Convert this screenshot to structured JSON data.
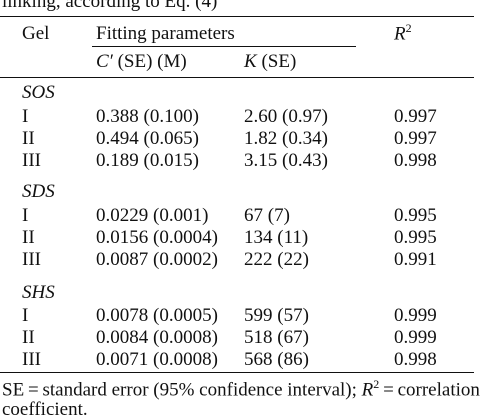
{
  "caption_top": "linking, according to Eq. (4)",
  "headers": {
    "gel": "Gel",
    "fitting_parameters": "Fitting parameters",
    "c_prime": "C′",
    "c_unit": " (SE) (M)",
    "k": "K",
    "k_unit": " (SE)",
    "r": "R",
    "r_sup": "2"
  },
  "groups": [
    {
      "name": "SOS",
      "rows": [
        {
          "gel": "I",
          "c": "0.388 (0.100)",
          "k": "2.60 (0.97)",
          "r2": "0.997"
        },
        {
          "gel": "II",
          "c": "0.494 (0.065)",
          "k": "1.82 (0.34)",
          "r2": "0.997"
        },
        {
          "gel": "III",
          "c": "0.189 (0.015)",
          "k": "3.15 (0.43)",
          "r2": "0.998"
        }
      ]
    },
    {
      "name": "SDS",
      "rows": [
        {
          "gel": "I",
          "c": "0.0229 (0.001)",
          "k": "67 (7)",
          "r2": "0.995"
        },
        {
          "gel": "II",
          "c": "0.0156 (0.0004)",
          "k": "134 (11)",
          "r2": "0.995"
        },
        {
          "gel": "III",
          "c": "0.0087 (0.0002)",
          "k": "222 (22)",
          "r2": "0.991"
        }
      ]
    },
    {
      "name": "SHS",
      "rows": [
        {
          "gel": "I",
          "c": "0.0078 (0.0005)",
          "k": "599 (57)",
          "r2": "0.999"
        },
        {
          "gel": "II",
          "c": "0.0084 (0.0008)",
          "k": "518 (67)",
          "r2": "0.999"
        },
        {
          "gel": "III",
          "c": "0.0071 (0.0008)",
          "k": "568 (86)",
          "r2": "0.998"
        }
      ]
    }
  ],
  "footnote": {
    "line1_a": "SE = standard error (95% confidence interval); ",
    "line1_r": "R",
    "line1_sup": "2",
    "line1_b": " = correlation",
    "line2": "coefficient."
  }
}
